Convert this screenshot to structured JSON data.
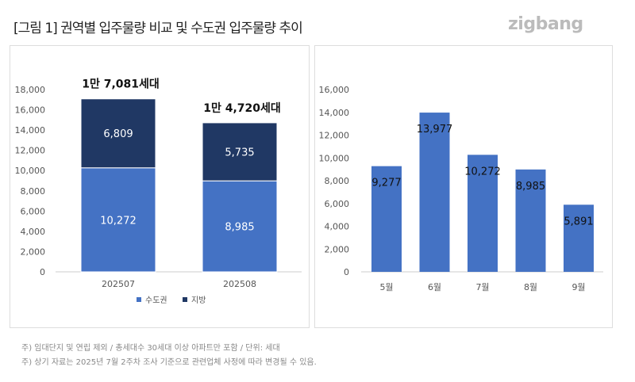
{
  "title": "[그림 1] 권역별 입주물량 비교 및 수도권 입주물량 추이",
  "logo": "zigbang",
  "notes": [
    "주) 임대단지 및 연립 제외 / 총세대수 30세대 이상 아파트만 포함 / 단위: 세대",
    "주) 상기 자료는 2025년 7월 2주차 조사 기준으로 관련업체 사정에 따라 변경될 수 있음."
  ],
  "colors": {
    "capital": "#4472c4",
    "local": "#203864",
    "bar": "#4472c4"
  },
  "chart_data": [
    {
      "type": "bar",
      "stacked": true,
      "categories": [
        "202507",
        "202508"
      ],
      "series": [
        {
          "name": "수도권",
          "values": [
            10272,
            8985
          ],
          "labels": [
            "10,272",
            "8,985"
          ]
        },
        {
          "name": "지방",
          "values": [
            6809,
            5735
          ],
          "labels": [
            "6,809",
            "5,735"
          ]
        }
      ],
      "totals": [
        "1만 7,081세대",
        "1만 4,720세대"
      ],
      "ylim": [
        0,
        18000
      ],
      "yticks": [
        "0",
        "2,000",
        "4,000",
        "6,000",
        "8,000",
        "10,000",
        "12,000",
        "14,000",
        "16,000",
        "18,000"
      ],
      "legend": "bottom"
    },
    {
      "type": "bar",
      "categories": [
        "5월",
        "6월",
        "7월",
        "8월",
        "9월"
      ],
      "values": [
        9277,
        13977,
        10272,
        8985,
        5891
      ],
      "labels": [
        "9,277",
        "13,977",
        "10,272",
        "8,985",
        "5,891"
      ],
      "ylim": [
        0,
        16000
      ],
      "yticks": [
        "0",
        "2,000",
        "4,000",
        "6,000",
        "8,000",
        "10,000",
        "12,000",
        "14,000",
        "16,000"
      ]
    }
  ]
}
